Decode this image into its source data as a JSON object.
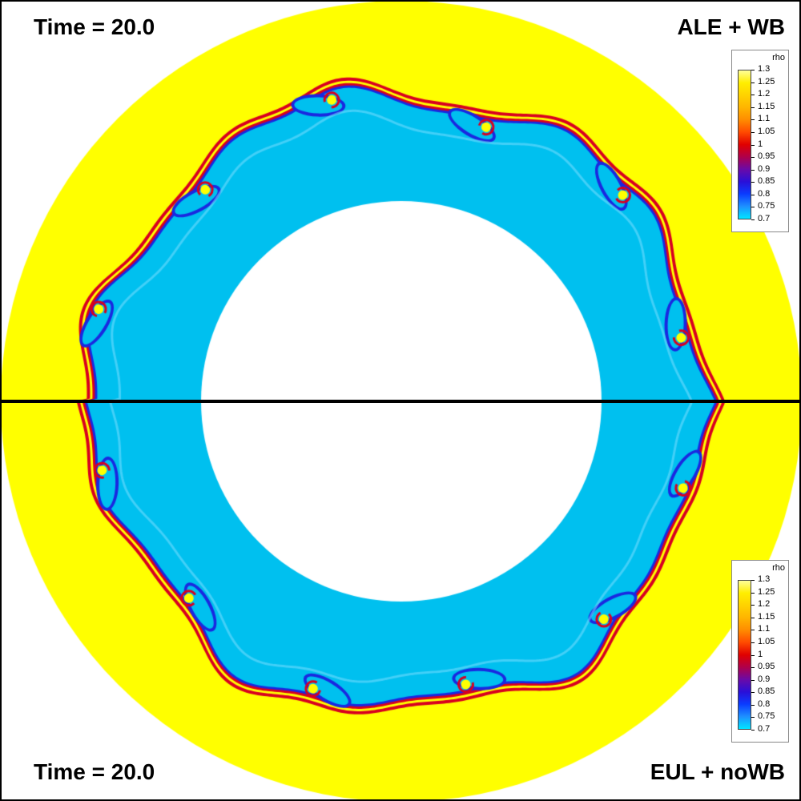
{
  "panels": {
    "top": {
      "time_label": "Time = 20.0",
      "method_label": "ALE + WB"
    },
    "bottom": {
      "time_label": "Time = 20.0",
      "method_label": "EUL + noWB"
    }
  },
  "legend": {
    "title": "rho",
    "min": 0.7,
    "max": 1.3,
    "ticks": [
      "1.3",
      "1.25",
      "1.2",
      "1.15",
      "1.1",
      "1.05",
      "1",
      "0.95",
      "0.9",
      "0.85",
      "0.8",
      "0.75",
      "0.7"
    ],
    "colors": [
      "#00e5ff",
      "#1e90ff",
      "#0a3cff",
      "#2a0fd8",
      "#6a0aa8",
      "#b0004a",
      "#e00000",
      "#ff4a00",
      "#ff8c00",
      "#ffb400",
      "#ffd200",
      "#ffee00",
      "#ffff99"
    ]
  },
  "field_colors": {
    "outer_background": "#ffff00",
    "inner_fluid": "#00c0ef",
    "interface_red": "#d80020",
    "interface_blue": "#1a28e0",
    "hole": "#ffffff"
  }
}
